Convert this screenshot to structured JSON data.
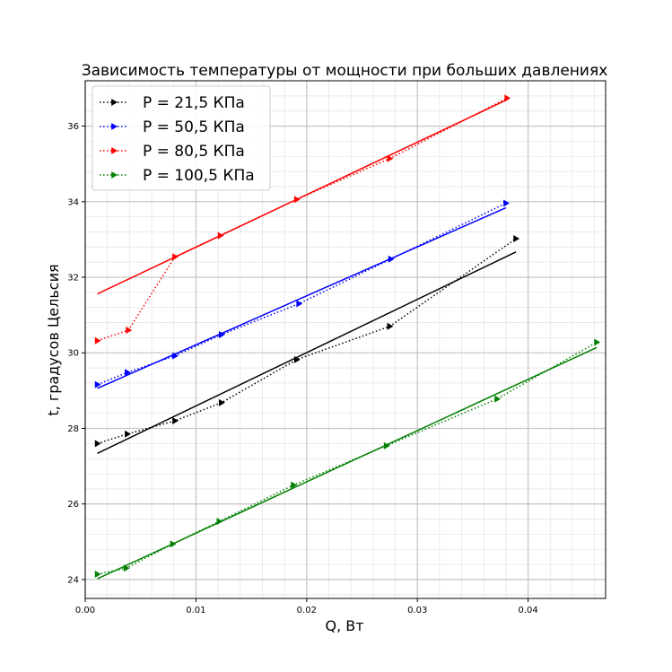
{
  "chart_data": {
    "type": "line",
    "title": "Зависимость температуры от мощности при больших давлениях",
    "xlabel": "Q, Вт",
    "ylabel": "t, градусов Цельсия",
    "xlim": [
      0.0,
      0.047
    ],
    "ylim": [
      23.5,
      37.2
    ],
    "x_major_ticks": [
      0.0,
      0.01,
      0.02,
      0.03,
      0.04
    ],
    "x_tick_labels": [
      "0.00",
      "0.01",
      "0.02",
      "0.03",
      "0.04"
    ],
    "y_major_ticks": [
      24,
      26,
      28,
      30,
      32,
      34,
      36
    ],
    "y_tick_labels": [
      "24",
      "26",
      "28",
      "30",
      "32",
      "34",
      "36"
    ],
    "x_minor_step": 0.002,
    "y_minor_step": 0.4,
    "grid": true,
    "legend_position": "top-left",
    "series": [
      {
        "name": "P = 21,5 КПа",
        "color": "#000000",
        "marker": "triangle-right",
        "line_style": "dotted",
        "points": [
          [
            0.0011,
            27.6
          ],
          [
            0.0038,
            27.85
          ],
          [
            0.0081,
            28.2
          ],
          [
            0.0123,
            28.68
          ],
          [
            0.0191,
            29.82
          ],
          [
            0.0275,
            30.7
          ],
          [
            0.0389,
            33.02
          ]
        ],
        "fit": [
          [
            0.0011,
            27.34
          ],
          [
            0.0389,
            32.67
          ]
        ]
      },
      {
        "name": "P = 50,5 КПа",
        "color": "#0000ff",
        "marker": "triangle-right",
        "line_style": "dotted",
        "points": [
          [
            0.0011,
            29.16
          ],
          [
            0.0038,
            29.48
          ],
          [
            0.0081,
            29.92
          ],
          [
            0.0123,
            30.48
          ],
          [
            0.0193,
            31.3
          ],
          [
            0.0276,
            32.48
          ],
          [
            0.038,
            33.96
          ]
        ],
        "fit": [
          [
            0.0011,
            29.06
          ],
          [
            0.038,
            33.84
          ]
        ]
      },
      {
        "name": "P = 80,5 КПа",
        "color": "#ff0000",
        "marker": "triangle-right",
        "line_style": "dotted",
        "points": [
          [
            0.0011,
            30.32
          ],
          [
            0.0039,
            30.6
          ],
          [
            0.0081,
            32.54
          ],
          [
            0.0122,
            33.1
          ],
          [
            0.0191,
            34.06
          ],
          [
            0.0275,
            35.14
          ],
          [
            0.0381,
            36.74
          ]
        ],
        "fit": [
          [
            0.0011,
            31.56
          ],
          [
            0.0381,
            36.7
          ]
        ]
      },
      {
        "name": "P = 100,5 КПа",
        "color": "#008000",
        "marker": "triangle-right",
        "line_style": "dotted",
        "points": [
          [
            0.0011,
            24.14
          ],
          [
            0.0037,
            24.3
          ],
          [
            0.0079,
            24.94
          ],
          [
            0.0121,
            25.54
          ],
          [
            0.0188,
            26.5
          ],
          [
            0.0272,
            27.54
          ],
          [
            0.0372,
            28.78
          ],
          [
            0.0462,
            30.28
          ]
        ],
        "fit": [
          [
            0.0011,
            24.02
          ],
          [
            0.0462,
            30.14
          ]
        ]
      }
    ]
  }
}
